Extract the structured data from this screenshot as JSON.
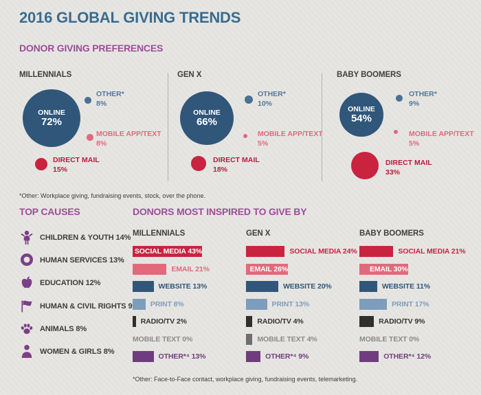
{
  "title": "2016 GLOBAL GIVING TRENDS",
  "colors": {
    "title_blue": "#3a6b8e",
    "heading_purple": "#9c4d98",
    "online_blue": "#30567a",
    "other_dot_blue": "#4a7195",
    "other_label_blue": "#54789b",
    "mobile_pink": "#e2697c",
    "direct_mail_red": "#c92340",
    "direct_mail_label": "#b51e3c",
    "bar_red": "#c92340",
    "bar_pink": "#e2697c",
    "bar_dark_blue": "#31567a",
    "bar_light_blue": "#7e9dbd",
    "bar_dark": "#2f2f2f",
    "bar_gray": "#6e6e6e",
    "label_radio": "#333333",
    "label_gray": "#8a8a8a",
    "bar_purple": "#6f3d7d",
    "icon_purple": "#7b3f87",
    "causes_text": "#3c3c3c"
  },
  "preferences": {
    "heading": "DONOR GIVING PREFERENCES",
    "footnote": "*Other: Workplace giving, fundraising events, stock, over the phone."
  },
  "top_causes": {
    "heading": "TOP CAUSES",
    "items": [
      {
        "icon": "child-icon",
        "label": "CHILDREN & YOUTH",
        "pct": "14%"
      },
      {
        "icon": "lifebuoy-icon",
        "label": "HUMAN SERVICES",
        "pct": "13%"
      },
      {
        "icon": "apple-icon",
        "label": "EDUCATION",
        "pct": "12%"
      },
      {
        "icon": "flag-icon",
        "label": "HUMAN & CIVIL RIGHTS",
        "pct": "9%"
      },
      {
        "icon": "paw-icon",
        "label": "ANIMALS",
        "pct": "8%"
      },
      {
        "icon": "woman-icon",
        "label": "WOMEN & GIRLS",
        "pct": "8%"
      }
    ]
  },
  "inspired": {
    "heading": "DONORS MOST INSPIRED TO GIVE BY",
    "footnote": "*Other: Face-to-Face contact, workplace giving, fundraising events, telemarketing."
  },
  "chart_data": [
    {
      "type": "bubble",
      "title": "DONOR GIVING PREFERENCES",
      "footnote": "*Other: Workplace giving, fundraising events, stock, over the phone.",
      "groups": [
        {
          "name": "MILLENNIALS",
          "channels": [
            {
              "label": "ONLINE",
              "value": 72,
              "display": "72%",
              "kind": "online"
            },
            {
              "label": "OTHER*",
              "value": 8,
              "display": "8%",
              "kind": "other"
            },
            {
              "label": "MOBILE APP/TEXT",
              "value": 8,
              "display": "8%",
              "kind": "mobile"
            },
            {
              "label": "DIRECT MAIL",
              "value": 15,
              "display": "15%",
              "kind": "direct_mail"
            }
          ]
        },
        {
          "name": "GEN X",
          "channels": [
            {
              "label": "ONLINE",
              "value": 66,
              "display": "66%",
              "kind": "online"
            },
            {
              "label": "OTHER*",
              "value": 10,
              "display": "10%",
              "kind": "other"
            },
            {
              "label": "MOBILE APP/TEXT",
              "value": 5,
              "display": "5%",
              "kind": "mobile"
            },
            {
              "label": "DIRECT MAIL",
              "value": 18,
              "display": "18%",
              "kind": "direct_mail"
            }
          ]
        },
        {
          "name": "BABY BOOMERS",
          "channels": [
            {
              "label": "ONLINE",
              "value": 54,
              "display": "54%",
              "kind": "online"
            },
            {
              "label": "OTHER*",
              "value": 9,
              "display": "9%",
              "kind": "other"
            },
            {
              "label": "MOBILE APP/TEXT",
              "value": 5,
              "display": "5%",
              "kind": "mobile"
            },
            {
              "label": "DIRECT MAIL",
              "value": 33,
              "display": "33%",
              "kind": "direct_mail"
            }
          ]
        }
      ]
    },
    {
      "type": "bar",
      "title": "DONORS MOST INSPIRED TO GIVE BY",
      "footnote": "*Other: Face-to-Face contact, workplace giving, fundraising events, telemarketing.",
      "unit": "%",
      "categories": [
        "SOCIAL MEDIA",
        "EMAIL",
        "WEBSITE",
        "PRINT",
        "RADIO/TV",
        "MOBILE TEXT",
        "OTHER*⁴"
      ],
      "series": [
        {
          "name": "MILLENNIALS",
          "values": [
            43,
            21,
            13,
            8,
            2,
            0,
            13
          ]
        },
        {
          "name": "GEN X",
          "values": [
            24,
            26,
            20,
            13,
            4,
            4,
            9
          ]
        },
        {
          "name": "BABY BOOMERS",
          "values": [
            21,
            30,
            11,
            17,
            9,
            0,
            12
          ]
        }
      ]
    }
  ]
}
